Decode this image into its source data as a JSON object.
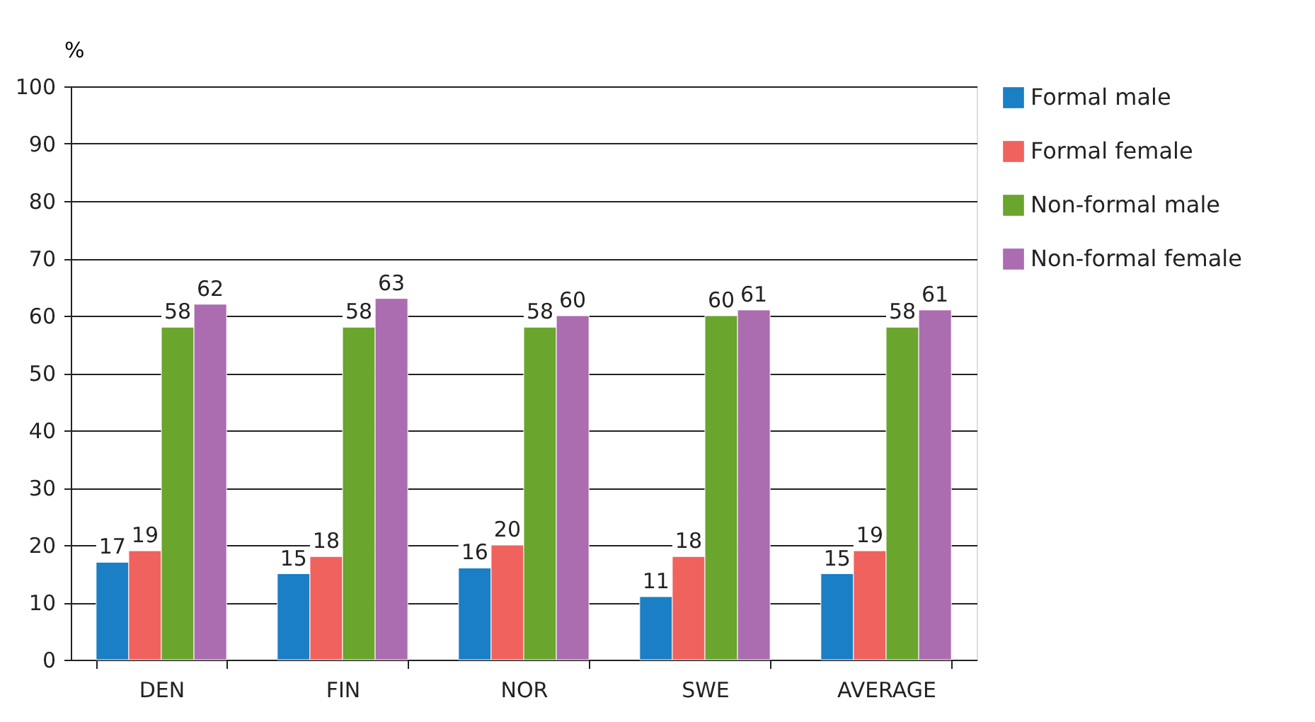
{
  "chart_data": {
    "type": "bar",
    "ylabel": "%",
    "categories": [
      "DEN",
      "FIN",
      "NOR",
      "SWE",
      "AVERAGE"
    ],
    "series": [
      {
        "name": "Formal male",
        "color": "#1a7fc4",
        "values": [
          17,
          15,
          16,
          11,
          15
        ]
      },
      {
        "name": "Formal female",
        "color": "#f0625e",
        "values": [
          19,
          18,
          20,
          18,
          19
        ]
      },
      {
        "name": "Non-formal male",
        "color": "#6aa52e",
        "values": [
          58,
          58,
          58,
          60,
          58
        ]
      },
      {
        "name": "Non-formal female",
        "color": "#ab6cb0",
        "values": [
          62,
          63,
          60,
          61,
          61
        ]
      }
    ],
    "ylim": [
      0,
      100
    ],
    "yticks": [
      0,
      10,
      20,
      30,
      40,
      50,
      60,
      70,
      80,
      90,
      100
    ],
    "grid": "y",
    "legend": "right",
    "data_labels": true
  }
}
